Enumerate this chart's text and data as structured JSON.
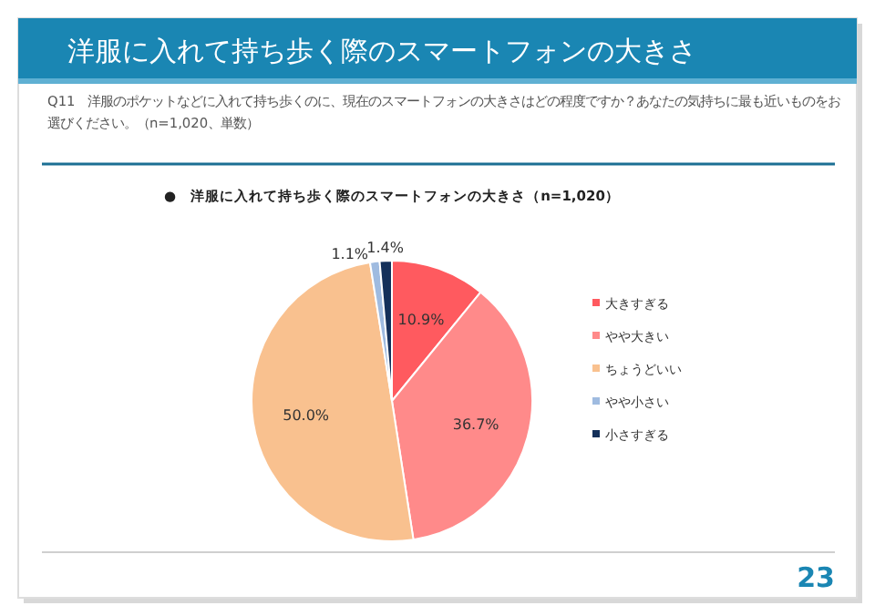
{
  "chart_data": {
    "type": "pie",
    "title": "洋服に入れて持ち歩く際のスマートフォンの大きさ",
    "subtitle": "Q11　洋服のポケットなどに入れて持ち歩くのに、現在のスマートフォンの大きさはどの程度ですか？あなたの気持ちに最も近いものをお選びください。（n=1,020、単数）",
    "categories": [
      "大きすぎる",
      "やや大きい",
      "ちょうどいい",
      "やや小さい",
      "小さすぎる"
    ],
    "values": [
      10.9,
      36.7,
      50.0,
      1.1,
      1.4
    ],
    "colors": [
      "#ff5a5f",
      "#ff8a8a",
      "#f9c18f",
      "#9fbbe0",
      "#14305a"
    ],
    "value_labels": [
      "10.9%",
      "36.7%",
      "50.0%",
      "1.1%",
      "1.4%"
    ],
    "legend": "right",
    "annotations": [
      "●　洋服に入れて持ち歩く際のスマートフォンの大きさ（n=1,020）",
      "23"
    ]
  }
}
